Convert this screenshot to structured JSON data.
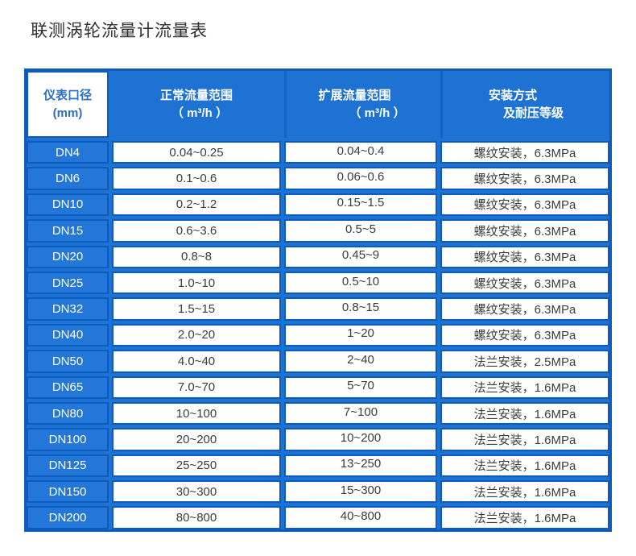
{
  "page": {
    "title": "联测涡轮流量计流量表"
  },
  "colors": {
    "table_background_blue": "#1e72d4",
    "border_dark_blue": "#0b5cbd",
    "dn_cell_blue": "#2277d9",
    "header_first_cell_text_blue": "#2b6fc4",
    "data_text": "#3c3c3c",
    "title_text": "#2f2f2f"
  },
  "table": {
    "columns": [
      {
        "id": "dn",
        "line1": "仪表口径",
        "line2": "(mm)"
      },
      {
        "id": "normal",
        "line1": "正常流量范围",
        "line2": "（ m³/h ）"
      },
      {
        "id": "extended",
        "line1": "扩展流量范围",
        "line2": "（ m³/h ）"
      },
      {
        "id": "install",
        "line1": "安装方式",
        "line2": "及耐压等级"
      }
    ],
    "rows": [
      {
        "dn": "DN4",
        "normal": "0.04~0.25",
        "extended": "0.04~0.4",
        "install": "螺纹安装，6.3MPa"
      },
      {
        "dn": "DN6",
        "normal": "0.1~0.6",
        "extended": "0.06~0.6",
        "install": "螺纹安装，6.3MPa"
      },
      {
        "dn": "DN10",
        "normal": "0.2~1.2",
        "extended": "0.15~1.5",
        "install": "螺纹安装，6.3MPa"
      },
      {
        "dn": "DN15",
        "normal": "0.6~3.6",
        "extended": "0.5~5",
        "install": "螺纹安装，6.3MPa"
      },
      {
        "dn": "DN20",
        "normal": "0.8~8",
        "extended": "0.45~9",
        "install": "螺纹安装，6.3MPa"
      },
      {
        "dn": "DN25",
        "normal": "1.0~10",
        "extended": "0.5~10",
        "install": "螺纹安装，6.3MPa"
      },
      {
        "dn": "DN32",
        "normal": "1.5~15",
        "extended": "0.8~15",
        "install": "螺纹安装，6.3MPa"
      },
      {
        "dn": "DN40",
        "normal": "2.0~20",
        "extended": "1~20",
        "install": "螺纹安装，6.3MPa"
      },
      {
        "dn": "DN50",
        "normal": "4.0~40",
        "extended": "2~40",
        "install": "法兰安装，2.5MPa"
      },
      {
        "dn": "DN65",
        "normal": "7.0~70",
        "extended": "5~70",
        "install": "法兰安装，1.6MPa"
      },
      {
        "dn": "DN80",
        "normal": "10~100",
        "extended": "7~100",
        "install": "法兰安装，1.6MPa"
      },
      {
        "dn": "DN100",
        "normal": "20~200",
        "extended": "10~200",
        "install": "法兰安装，1.6MPa"
      },
      {
        "dn": "DN125",
        "normal": "25~250",
        "extended": "13~250",
        "install": "法兰安装，1.6MPa"
      },
      {
        "dn": "DN150",
        "normal": "30~300",
        "extended": "15~300",
        "install": "法兰安装，1.6MPa"
      },
      {
        "dn": "DN200",
        "normal": "80~800",
        "extended": "40~800",
        "install": "法兰安装，1.6MPa"
      }
    ]
  }
}
